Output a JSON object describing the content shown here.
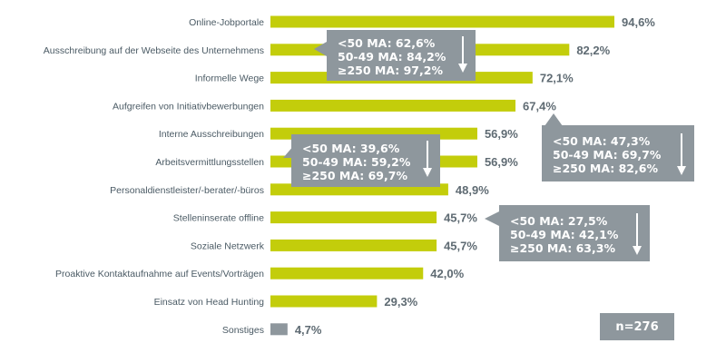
{
  "chart_data": {
    "type": "bar",
    "orientation": "horizontal",
    "categories": [
      "Online-Jobportale",
      "Ausschreibung auf der Webseite des Unternehmens",
      "Informelle Wege",
      "Aufgreifen von Initiativbewerbungen",
      "Interne Ausschreibungen",
      "Arbeitsvermittlungsstellen",
      "Personaldienstleister/-berater/-büros",
      "Stelleninserate offline",
      "Soziale Netzwerk",
      "Proaktive Kontaktaufnahme auf Events/Vorträgen",
      "Einsatz von Head Hunting",
      "Sonstiges"
    ],
    "values": [
      94.6,
      82.2,
      72.1,
      67.4,
      56.9,
      56.9,
      48.9,
      45.7,
      45.7,
      42.0,
      29.3,
      4.7
    ],
    "value_labels": [
      "94,6%",
      "82,2%",
      "72,1%",
      "67,4%",
      "56,9%",
      "56,9%",
      "48,9%",
      "45,7%",
      "45,7%",
      "42,0%",
      "29,3%",
      "4,7%"
    ],
    "xlim": [
      0,
      100
    ],
    "grid": false,
    "colors": {
      "bar": "#c3cd0b",
      "bar_other": "#8e979d",
      "value_text": "#5f6b73",
      "category_text": "#4a5a64",
      "callout_bg": "#8e979d"
    }
  },
  "callouts": [
    {
      "lines": [
        "<50 MA: 62,6%",
        "50-49 MA: 84,2%",
        "≥250 MA: 97,2%"
      ]
    },
    {
      "lines": [
        "<50 MA: 47,3%",
        "50-49 MA: 69,7%",
        "≥250 MA: 82,6%"
      ]
    },
    {
      "lines": [
        "<50 MA: 39,6%",
        "50-49 MA: 59,2%",
        "≥250 MA: 69,7%"
      ]
    },
    {
      "lines": [
        "<50 MA: 27,5%",
        "50-49 MA: 42,1%",
        "≥250 MA: 63,3%"
      ]
    }
  ],
  "sample_size": "n=276"
}
